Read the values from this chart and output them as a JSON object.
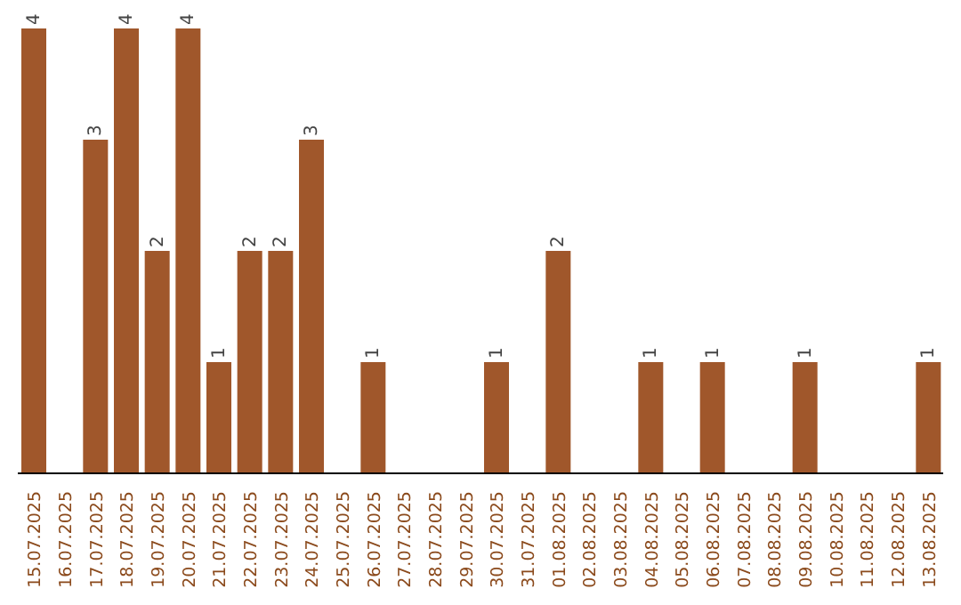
{
  "chart_data": {
    "type": "bar",
    "categories": [
      "15.07.2025",
      "16.07.2025",
      "17.07.2025",
      "18.07.2025",
      "19.07.2025",
      "20.07.2025",
      "21.07.2025",
      "22.07.2025",
      "23.07.2025",
      "24.07.2025",
      "25.07.2025",
      "26.07.2025",
      "27.07.2025",
      "28.07.2025",
      "29.07.2025",
      "30.07.2025",
      "31.07.2025",
      "01.08.2025",
      "02.08.2025",
      "03.08.2025",
      "04.08.2025",
      "05.08.2025",
      "06.08.2025",
      "07.08.2025",
      "08.08.2025",
      "09.08.2025",
      "10.08.2025",
      "11.08.2025",
      "12.08.2025",
      "13.08.2025"
    ],
    "values": [
      4,
      0,
      3,
      4,
      2,
      4,
      1,
      2,
      2,
      3,
      0,
      1,
      0,
      0,
      0,
      1,
      0,
      2,
      0,
      0,
      1,
      0,
      1,
      0,
      0,
      1,
      0,
      0,
      0,
      1
    ],
    "value_labels": [
      "4",
      null,
      "3",
      "4",
      "2",
      "4",
      "1",
      "2",
      "2",
      "3",
      null,
      "1",
      null,
      null,
      null,
      "1",
      null,
      "2",
      null,
      null,
      "1",
      null,
      "1",
      null,
      null,
      "1",
      null,
      null,
      null,
      "1"
    ],
    "color": "#a0572b"
  }
}
